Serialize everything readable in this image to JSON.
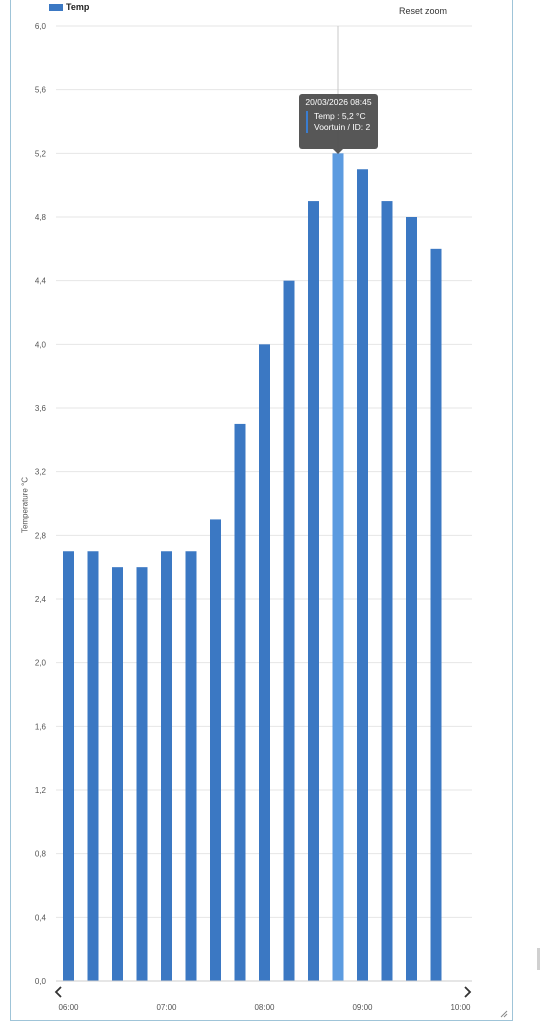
{
  "legend": {
    "label": "Temp",
    "color": "#3b78c3"
  },
  "reset_zoom": "Reset zoom",
  "chart_data": {
    "type": "bar",
    "title": "",
    "ylabel": "Temperature °C",
    "xlabel": "",
    "series": [
      {
        "name": "Temp",
        "x": [
          "06:00",
          "06:15",
          "06:30",
          "06:45",
          "07:00",
          "07:15",
          "07:30",
          "07:45",
          "08:00",
          "08:15",
          "08:30",
          "08:45",
          "09:00",
          "09:15",
          "09:30",
          "09:45"
        ],
        "values": [
          2.7,
          2.7,
          2.6,
          2.6,
          2.7,
          2.7,
          2.9,
          3.5,
          4.0,
          4.4,
          4.9,
          5.2,
          5.1,
          4.9,
          4.8,
          4.6
        ]
      }
    ],
    "ylim": [
      0,
      6.0
    ],
    "ytick_labels": [
      "0,0",
      "0,4",
      "0,8",
      "1,2",
      "1,6",
      "2,0",
      "2,4",
      "2,8",
      "3,2",
      "3,6",
      "4,0",
      "4,4",
      "4,8",
      "5,2",
      "5,6",
      "6,0"
    ],
    "ytick_values": [
      0,
      0.4,
      0.8,
      1.2,
      1.6,
      2.0,
      2.4,
      2.8,
      3.2,
      3.6,
      4.0,
      4.4,
      4.8,
      5.2,
      5.6,
      6.0
    ],
    "xtick_labels": [
      "06:00",
      "07:00",
      "08:00",
      "09:00",
      "10:00"
    ],
    "xtick_hours": [
      6,
      7,
      8,
      9,
      10
    ],
    "grid": true,
    "legend_position": "top-left",
    "highlight_index": 11,
    "colors": {
      "bar": "#3b78c3",
      "highlight": "#5c9be0",
      "grid": "#e6e6e6"
    }
  },
  "tooltip": {
    "title": "20/03/2026 08:45",
    "line1": "Temp : 5,2 °C",
    "line2": "Voortuin / ID: 2"
  },
  "nav": {
    "prev_icon": "‹",
    "next_icon": "›"
  }
}
